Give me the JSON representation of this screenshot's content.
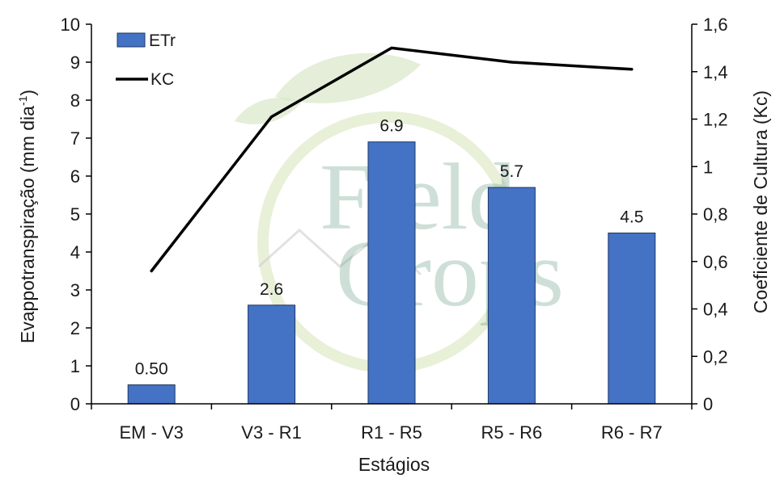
{
  "watermark": {
    "line1": "Field",
    "line2": "Crops"
  },
  "chart_data": {
    "type": "bar",
    "categories": [
      "EM - V3",
      "V3 - R1",
      "R1 - R5",
      "R5 - R6",
      "R6 - R7"
    ],
    "series": [
      {
        "name": "ETr",
        "type": "bar",
        "axis": "left",
        "values": [
          0.5,
          2.6,
          6.9,
          5.7,
          4.5
        ],
        "labels": [
          "0.50",
          "2.6",
          "6.9",
          "5.7",
          "4.5"
        ],
        "color": "#4472c4"
      },
      {
        "name": "KC",
        "type": "line",
        "axis": "right",
        "values": [
          0.56,
          1.21,
          1.5,
          1.44,
          1.41
        ],
        "color": "#000000"
      }
    ],
    "xlabel": "Estágios",
    "ylabel": "Evappotranspiração (mm dia",
    "ylabel_sup": "-1",
    "ylabel_close": ")",
    "y2label": "Coeficiente de Cultura (Kc)",
    "ylim": [
      0,
      10
    ],
    "y2lim": [
      0,
      1.6
    ],
    "yticks": [
      "0",
      "1",
      "2",
      "3",
      "4",
      "5",
      "6",
      "7",
      "8",
      "9",
      "10"
    ],
    "y2ticks": [
      "0",
      "0,2",
      "0,4",
      "0,6",
      "0,8",
      "1",
      "1,2",
      "1,4",
      "1,6"
    ],
    "legend_position": "top-left",
    "grid": false
  }
}
